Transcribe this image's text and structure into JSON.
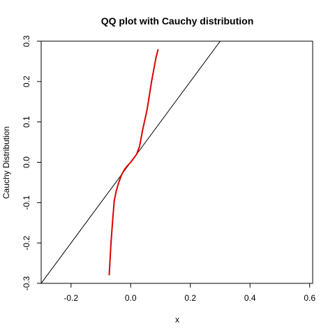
{
  "chart_data": {
    "type": "line",
    "title": "QQ plot with Cauchy distribution",
    "xlabel": "x",
    "ylabel": "Cauchy Distribution",
    "xlim": [
      -0.3,
      0.61
    ],
    "ylim": [
      -0.3,
      0.3
    ],
    "x_ticks": [
      "-0.2",
      "0.0",
      "0.2",
      "0.4",
      "0.6"
    ],
    "y_ticks": [
      "-0.3",
      "-0.2",
      "-0.1",
      "0.0",
      "0.1",
      "0.2",
      "0.3"
    ],
    "grid": false,
    "series": [
      {
        "color": "#dd0000",
        "points": [
          [
            -0.072,
            -0.28
          ],
          [
            -0.066,
            -0.2
          ],
          [
            -0.06,
            -0.14
          ],
          [
            -0.055,
            -0.095
          ],
          [
            -0.048,
            -0.07
          ],
          [
            -0.04,
            -0.05
          ],
          [
            -0.03,
            -0.03
          ],
          [
            -0.02,
            -0.017
          ],
          [
            -0.01,
            -0.008
          ],
          [
            0.0,
            0.0
          ],
          [
            0.01,
            0.01
          ],
          [
            0.02,
            0.02
          ],
          [
            0.03,
            0.04
          ],
          [
            0.04,
            0.08
          ],
          [
            0.055,
            0.13
          ],
          [
            0.07,
            0.2
          ],
          [
            0.085,
            0.26
          ],
          [
            0.092,
            0.28
          ]
        ]
      }
    ],
    "reference_line": {
      "color": "#000000",
      "intercept": 0,
      "slope": 1
    }
  }
}
